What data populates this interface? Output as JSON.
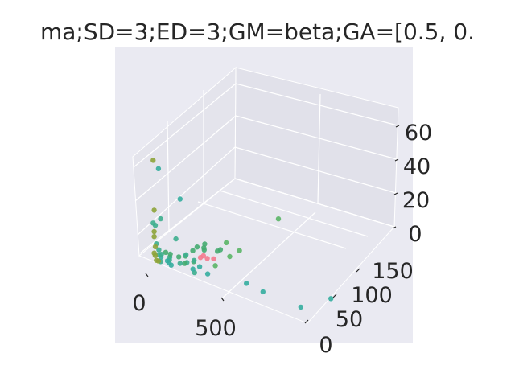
{
  "title": "ma;SD=3;ED=3;GM=beta;GA=[0.5, 0.",
  "chart_data": {
    "type": "scatter",
    "projection": "3d",
    "title": "ma;SD=3;ED=3;GM=beta;GA=[0.5, 0.",
    "x_ticks": [
      "0",
      "500"
    ],
    "y_ticks": [
      "0",
      "50",
      "100",
      "150"
    ],
    "z_ticks": [
      "0",
      "20",
      "40",
      "60"
    ],
    "xlim": [
      -20,
      900
    ],
    "ylim": [
      0,
      180
    ],
    "zlim": [
      0,
      70
    ],
    "grid": true,
    "pane_color": "#eaeaf2",
    "background": "#ffffff",
    "point_colors": [
      "#f47a8e",
      "#8da33a",
      "#3dae8e",
      "#45ab70",
      "#5ab566",
      "#34ad9e"
    ],
    "points": [
      {
        "x": 5,
        "y": 0,
        "z": 60,
        "c": "#8da33a"
      },
      {
        "x": 30,
        "y": 0,
        "z": 56,
        "c": "#34ad9e"
      },
      {
        "x": 120,
        "y": 5,
        "z": 40,
        "c": "#34ad9e"
      },
      {
        "x": 10,
        "y": 0,
        "z": 30,
        "c": "#8da33a"
      },
      {
        "x": 40,
        "y": 0,
        "z": 26,
        "c": "#3dae8e"
      },
      {
        "x": 5,
        "y": 0,
        "z": 22,
        "c": "#3dae8e"
      },
      {
        "x": 15,
        "y": 0,
        "z": 21,
        "c": "#3dae8e"
      },
      {
        "x": 100,
        "y": 5,
        "z": 15,
        "c": "#3dae8e"
      },
      {
        "x": 10,
        "y": 0,
        "z": 17,
        "c": "#8da33a"
      },
      {
        "x": 10,
        "y": 0,
        "z": 14,
        "c": "#8da33a"
      },
      {
        "x": 200,
        "y": 20,
        "z": 12,
        "c": "#45ab70"
      },
      {
        "x": 20,
        "y": 0,
        "z": 10,
        "c": "#3dae8e"
      },
      {
        "x": 250,
        "y": 30,
        "z": 8,
        "c": "#45ab70"
      },
      {
        "x": 15,
        "y": 0,
        "z": 8,
        "c": "#8da33a"
      },
      {
        "x": 380,
        "y": 90,
        "z": 16,
        "c": "#5ab566"
      },
      {
        "x": 230,
        "y": 50,
        "z": 6,
        "c": "#5ab566"
      },
      {
        "x": 20,
        "y": 5,
        "z": 5,
        "c": "#3dae8e"
      },
      {
        "x": 140,
        "y": 30,
        "z": 5,
        "c": "#45ab70"
      },
      {
        "x": 160,
        "y": 35,
        "z": 4,
        "c": "#45ab70"
      },
      {
        "x": 10,
        "y": 0,
        "z": 4,
        "c": "#8da33a"
      },
      {
        "x": 180,
        "y": 20,
        "z": 3,
        "c": "#f47a8e"
      },
      {
        "x": 230,
        "y": 25,
        "z": 3,
        "c": "#f47a8e"
      },
      {
        "x": 40,
        "y": 10,
        "z": 3,
        "c": "#45ab70"
      },
      {
        "x": 120,
        "y": 30,
        "z": 2,
        "c": "#45ab70"
      },
      {
        "x": 270,
        "y": 40,
        "z": 2,
        "c": "#5ab566"
      },
      {
        "x": 280,
        "y": 55,
        "z": 2,
        "c": "#5ab566"
      },
      {
        "x": 200,
        "y": 25,
        "z": 2,
        "c": "#f47a8e"
      },
      {
        "x": 20,
        "y": 5,
        "z": 2,
        "c": "#3dae8e"
      },
      {
        "x": 10,
        "y": 2,
        "z": 2,
        "c": "#8da33a"
      },
      {
        "x": 60,
        "y": 10,
        "z": 1,
        "c": "#3dae8e"
      },
      {
        "x": 90,
        "y": 15,
        "z": 1,
        "c": "#45ab70"
      },
      {
        "x": 150,
        "y": 40,
        "z": 1,
        "c": "#45ab70"
      },
      {
        "x": 170,
        "y": 30,
        "z": 1,
        "c": "#f47a8e"
      },
      {
        "x": 250,
        "y": 20,
        "z": 1,
        "c": "#5ab566"
      },
      {
        "x": 30,
        "y": 5,
        "z": 1,
        "c": "#34ad9e"
      },
      {
        "x": 70,
        "y": 5,
        "z": 1,
        "c": "#3dae8e"
      },
      {
        "x": 110,
        "y": 20,
        "z": 1,
        "c": "#45ab70"
      },
      {
        "x": 200,
        "y": 45,
        "z": 1,
        "c": "#45ab70"
      },
      {
        "x": 140,
        "y": 10,
        "z": 1,
        "c": "#3dae8e"
      },
      {
        "x": 50,
        "y": 15,
        "z": 1,
        "c": "#45ab70"
      },
      {
        "x": 80,
        "y": 0,
        "z": 1,
        "c": "#34ad9e"
      },
      {
        "x": 120,
        "y": 5,
        "z": 1,
        "c": "#3dae8e"
      },
      {
        "x": 20,
        "y": 10,
        "z": 1,
        "c": "#3dae8e"
      },
      {
        "x": 160,
        "y": 15,
        "z": 1,
        "c": "#45ab70"
      },
      {
        "x": 200,
        "y": 10,
        "z": 1,
        "c": "#34ad9e"
      },
      {
        "x": 100,
        "y": 25,
        "z": 0,
        "c": "#3dae8e"
      },
      {
        "x": 40,
        "y": 0,
        "z": 0,
        "c": "#3dae8e"
      },
      {
        "x": 20,
        "y": 0,
        "z": 0,
        "c": "#8da33a"
      },
      {
        "x": 60,
        "y": 5,
        "z": 0,
        "c": "#34ad9e"
      },
      {
        "x": 150,
        "y": 20,
        "z": 0,
        "c": "#3dae8e"
      },
      {
        "x": 90,
        "y": 0,
        "z": 0,
        "c": "#34ad9e"
      },
      {
        "x": 130,
        "y": 10,
        "z": 0,
        "c": "#45ab70"
      },
      {
        "x": 180,
        "y": 5,
        "z": 0,
        "c": "#34ad9e"
      },
      {
        "x": 30,
        "y": 0,
        "z": 0,
        "c": "#8da33a"
      },
      {
        "x": 250,
        "y": 5,
        "z": 0,
        "c": "#34ad9e"
      },
      {
        "x": 200,
        "y": 0,
        "z": 0,
        "c": "#3dae8e"
      },
      {
        "x": 420,
        "y": 10,
        "z": 0,
        "c": "#34ad9e"
      },
      {
        "x": 510,
        "y": 5,
        "z": 0,
        "c": "#34ad9e"
      },
      {
        "x": 770,
        "y": 30,
        "z": 0,
        "c": "#34ad9e"
      },
      {
        "x": 700,
        "y": 0,
        "z": 0,
        "c": "#34ad9e"
      }
    ]
  }
}
